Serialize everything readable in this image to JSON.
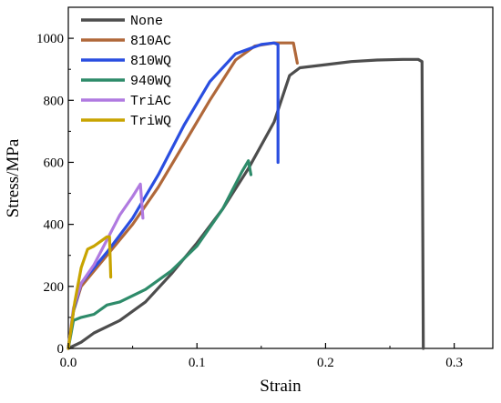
{
  "chart_data": {
    "type": "line",
    "xlabel": "Strain",
    "ylabel": "Stress/MPa",
    "xlim": [
      0.0,
      0.33
    ],
    "ylim": [
      0,
      1100
    ],
    "x_ticks": [
      0.0,
      0.1,
      0.2,
      0.3
    ],
    "x_tick_labels": [
      "0.0",
      "0.1",
      "0.2",
      "0.3"
    ],
    "y_ticks": [
      0,
      200,
      400,
      600,
      800,
      1000
    ],
    "y_tick_labels": [
      "0",
      "200",
      "400",
      "600",
      "800",
      "1000"
    ],
    "grid": false,
    "legend_position": "top-left",
    "series": [
      {
        "name": "None",
        "color": "#4d4d4d",
        "points": [
          [
            0.0,
            0
          ],
          [
            0.01,
            20
          ],
          [
            0.02,
            50
          ],
          [
            0.04,
            90
          ],
          [
            0.06,
            150
          ],
          [
            0.08,
            240
          ],
          [
            0.1,
            340
          ],
          [
            0.12,
            450
          ],
          [
            0.14,
            580
          ],
          [
            0.16,
            730
          ],
          [
            0.172,
            880
          ],
          [
            0.18,
            905
          ],
          [
            0.2,
            915
          ],
          [
            0.22,
            925
          ],
          [
            0.24,
            930
          ],
          [
            0.26,
            932
          ],
          [
            0.272,
            932
          ],
          [
            0.275,
            925
          ],
          [
            0.276,
            0
          ]
        ]
      },
      {
        "name": "810AC",
        "color": "#b0683a",
        "points": [
          [
            0.0,
            0
          ],
          [
            0.004,
            120
          ],
          [
            0.01,
            200
          ],
          [
            0.03,
            300
          ],
          [
            0.05,
            400
          ],
          [
            0.07,
            520
          ],
          [
            0.09,
            660
          ],
          [
            0.11,
            800
          ],
          [
            0.13,
            930
          ],
          [
            0.145,
            975
          ],
          [
            0.16,
            985
          ],
          [
            0.175,
            985
          ],
          [
            0.178,
            920
          ]
        ]
      },
      {
        "name": "810WQ",
        "color": "#2a4ee0",
        "points": [
          [
            0.0,
            0
          ],
          [
            0.004,
            120
          ],
          [
            0.01,
            210
          ],
          [
            0.03,
            310
          ],
          [
            0.05,
            420
          ],
          [
            0.07,
            560
          ],
          [
            0.09,
            720
          ],
          [
            0.11,
            860
          ],
          [
            0.13,
            950
          ],
          [
            0.15,
            980
          ],
          [
            0.16,
            985
          ],
          [
            0.163,
            980
          ],
          [
            0.163,
            600
          ]
        ]
      },
      {
        "name": "940WQ",
        "color": "#2e8b6a",
        "points": [
          [
            0.0,
            0
          ],
          [
            0.004,
            90
          ],
          [
            0.01,
            100
          ],
          [
            0.02,
            110
          ],
          [
            0.03,
            140
          ],
          [
            0.04,
            150
          ],
          [
            0.06,
            190
          ],
          [
            0.08,
            250
          ],
          [
            0.1,
            330
          ],
          [
            0.12,
            450
          ],
          [
            0.135,
            570
          ],
          [
            0.14,
            605
          ],
          [
            0.142,
            560
          ]
        ]
      },
      {
        "name": "TriAC",
        "color": "#b07ae0",
        "points": [
          [
            0.0,
            0
          ],
          [
            0.004,
            130
          ],
          [
            0.01,
            210
          ],
          [
            0.02,
            270
          ],
          [
            0.03,
            350
          ],
          [
            0.04,
            430
          ],
          [
            0.05,
            490
          ],
          [
            0.056,
            530
          ],
          [
            0.058,
            420
          ]
        ]
      },
      {
        "name": "TriWQ",
        "color": "#c8a400",
        "points": [
          [
            0.0,
            0
          ],
          [
            0.005,
            150
          ],
          [
            0.01,
            260
          ],
          [
            0.015,
            320
          ],
          [
            0.02,
            330
          ],
          [
            0.025,
            345
          ],
          [
            0.03,
            360
          ],
          [
            0.032,
            360
          ],
          [
            0.033,
            230
          ]
        ]
      }
    ]
  }
}
